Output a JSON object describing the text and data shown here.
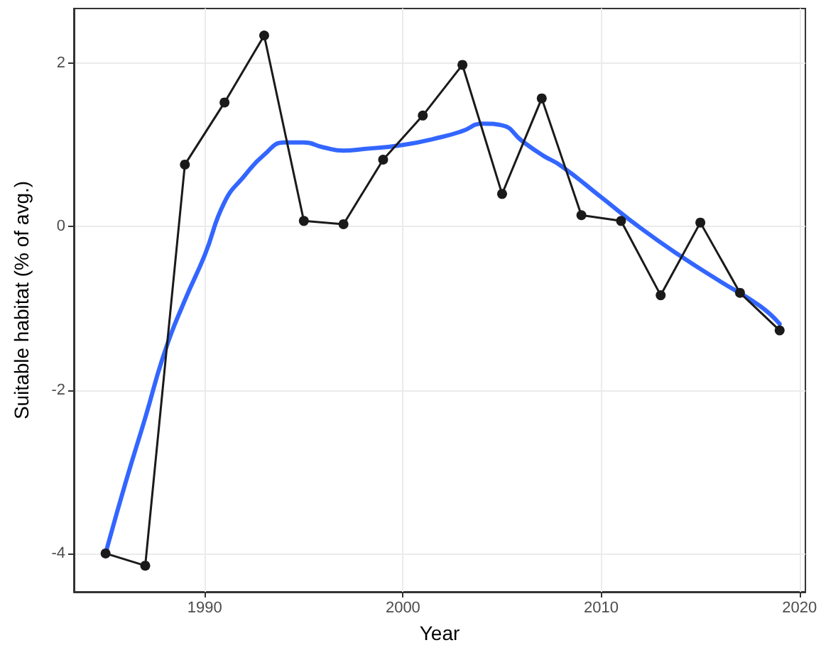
{
  "chart_data": {
    "type": "line",
    "xlabel": "Year",
    "ylabel": "Suitable habitat (% of avg.)",
    "xlim": [
      1983.4,
      2020.3
    ],
    "xticks": [
      1990,
      2000,
      2010,
      2020
    ],
    "ylim": [
      -4.47,
      2.67
    ],
    "yticks": [
      -4,
      -2,
      0,
      2
    ],
    "grid": true,
    "series": [
      {
        "color": "#1a1a1a",
        "marker": "circle",
        "x": [
          1985,
          1987,
          1989,
          1991,
          1993,
          1995,
          1997,
          1999,
          2001,
          2003,
          2005,
          2007,
          2009,
          2011,
          2013,
          2015,
          2017,
          2019
        ],
        "values": [
          -4.0,
          -4.15,
          0.76,
          1.52,
          2.34,
          0.07,
          0.03,
          0.82,
          1.36,
          1.98,
          0.4,
          1.57,
          0.14,
          0.07,
          -0.84,
          0.05,
          -0.81,
          -1.27
        ]
      },
      {
        "color": "#3366ff",
        "marker": "none",
        "x": [
          1985,
          1986,
          1987,
          1988,
          1989,
          1990,
          1991,
          1992,
          1993,
          1994,
          1995,
          1996,
          1997,
          1998,
          2000,
          2002,
          2003,
          2004,
          2005,
          2006,
          2007,
          2008,
          2010,
          2012,
          2014,
          2016,
          2018,
          2019
        ],
        "values": [
          -4.0,
          -3.14,
          -2.34,
          -1.52,
          -0.9,
          -0.35,
          0.3,
          0.62,
          0.88,
          1.03,
          1.03,
          0.97,
          0.93,
          0.95,
          1.0,
          1.1,
          1.17,
          1.26,
          1.24,
          1.05,
          0.88,
          0.74,
          0.36,
          -0.02,
          -0.36,
          -0.67,
          -0.97,
          -1.19
        ]
      }
    ]
  }
}
